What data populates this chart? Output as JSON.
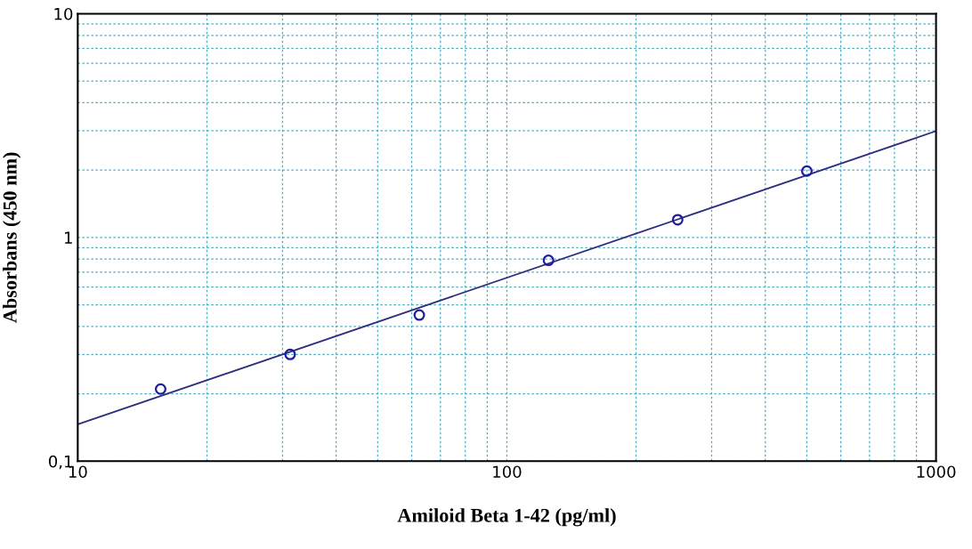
{
  "chart_data": {
    "type": "scatter",
    "xlabel": "Amiloid Beta 1-42 (pg/ml)",
    "ylabel": "Absorbans (450 nm)",
    "log": "xy",
    "grid": true,
    "marker": "circle",
    "xlim": [
      10,
      1000
    ],
    "ylim": [
      0.1,
      10
    ],
    "xticks": [
      10,
      {
        "value": 20,
        "label": null
      },
      {
        "value": 30,
        "label": null
      },
      {
        "value": 40,
        "label": null
      },
      {
        "value": 50,
        "label": null
      },
      {
        "value": 60,
        "label": null
      },
      {
        "value": 70,
        "label": null
      },
      {
        "value": 80,
        "label": null
      },
      {
        "value": 90,
        "label": null
      },
      100,
      {
        "value": 200,
        "label": null
      },
      {
        "value": 300,
        "label": null
      },
      {
        "value": 400,
        "label": null
      },
      {
        "value": 500,
        "label": null
      },
      {
        "value": 600,
        "label": null
      },
      {
        "value": 700,
        "label": null
      },
      {
        "value": 800,
        "label": null
      },
      {
        "value": 900,
        "label": null
      },
      1000
    ],
    "yticks": [
      {
        "value": 0.1,
        "label": "0,1"
      },
      {
        "value": 0.2,
        "label": null
      },
      {
        "value": 0.3,
        "label": null
      },
      {
        "value": 0.4,
        "label": null
      },
      {
        "value": 0.5,
        "label": null
      },
      {
        "value": 0.6,
        "label": null
      },
      {
        "value": 0.7,
        "label": null
      },
      {
        "value": 0.8,
        "label": null
      },
      {
        "value": 0.9,
        "label": null
      },
      1,
      {
        "value": 2,
        "label": null
      },
      {
        "value": 3,
        "label": null
      },
      {
        "value": 4,
        "label": null
      },
      {
        "value": 5,
        "label": null
      },
      {
        "value": 6,
        "label": null
      },
      {
        "value": 7,
        "label": null
      },
      {
        "value": 8,
        "label": null
      },
      {
        "value": 9,
        "label": null
      },
      10
    ],
    "series": [
      {
        "color": "#1c1ca0",
        "x": [
          15.6,
          31.25,
          62.5,
          125,
          250,
          500
        ],
        "values": [
          0.21,
          0.3,
          0.45,
          0.79,
          1.2,
          1.98
        ]
      },
      {
        "type": "line",
        "color": "#2e2e80",
        "marker": "none",
        "x": [
          10,
          1000
        ],
        "values": [
          0.146,
          2.99
        ]
      }
    ]
  }
}
